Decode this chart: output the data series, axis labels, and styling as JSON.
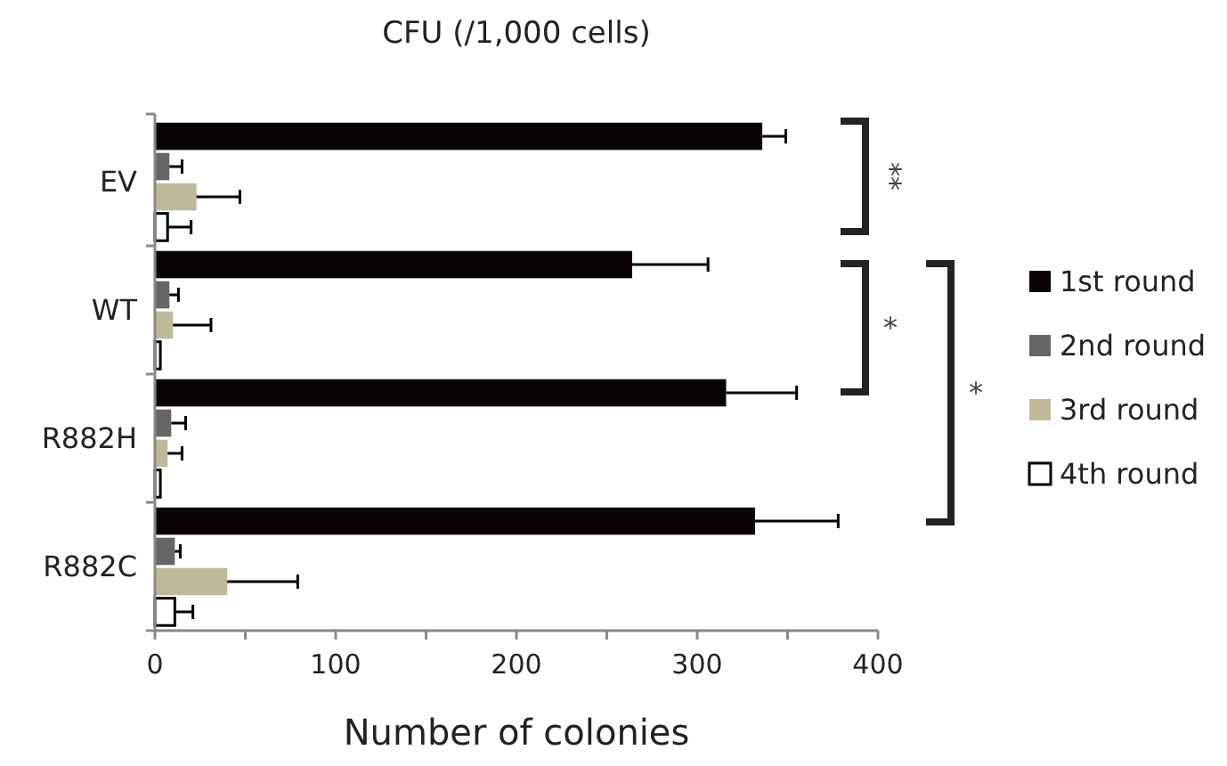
{
  "chart_data": {
    "type": "bar",
    "orientation": "horizontal",
    "title": "CFU (/1,000 cells)",
    "xlabel": "Number of colonies",
    "categories": [
      "EV",
      "WT",
      "R882H",
      "R882C"
    ],
    "series": [
      {
        "name": "1st round",
        "color": "#0a0304",
        "values": [
          336,
          264,
          316,
          332
        ],
        "errors": [
          13,
          42,
          39,
          46
        ]
      },
      {
        "name": "2nd round",
        "color": "#666666",
        "values": [
          8,
          8,
          9,
          11
        ],
        "errors": [
          7,
          5,
          8,
          3
        ]
      },
      {
        "name": "3rd round",
        "color": "#bfb89a",
        "values": [
          23,
          10,
          7,
          40
        ],
        "errors": [
          24,
          21,
          8,
          39
        ]
      },
      {
        "name": "4th round",
        "color": "#ffffff",
        "values": [
          7,
          3,
          3,
          11
        ],
        "errors": [
          13,
          null,
          null,
          10
        ]
      }
    ],
    "xlim": [
      0,
      400
    ],
    "xticks": [
      0,
      {
        "value": 50,
        "label": null
      },
      100,
      {
        "value": 150,
        "label": null
      },
      200,
      {
        "value": 250,
        "label": null
      },
      300,
      {
        "value": 350,
        "label": null
      },
      400
    ],
    "annotations": [
      "**",
      "*",
      "*"
    ],
    "legend": "right",
    "grid": false
  }
}
